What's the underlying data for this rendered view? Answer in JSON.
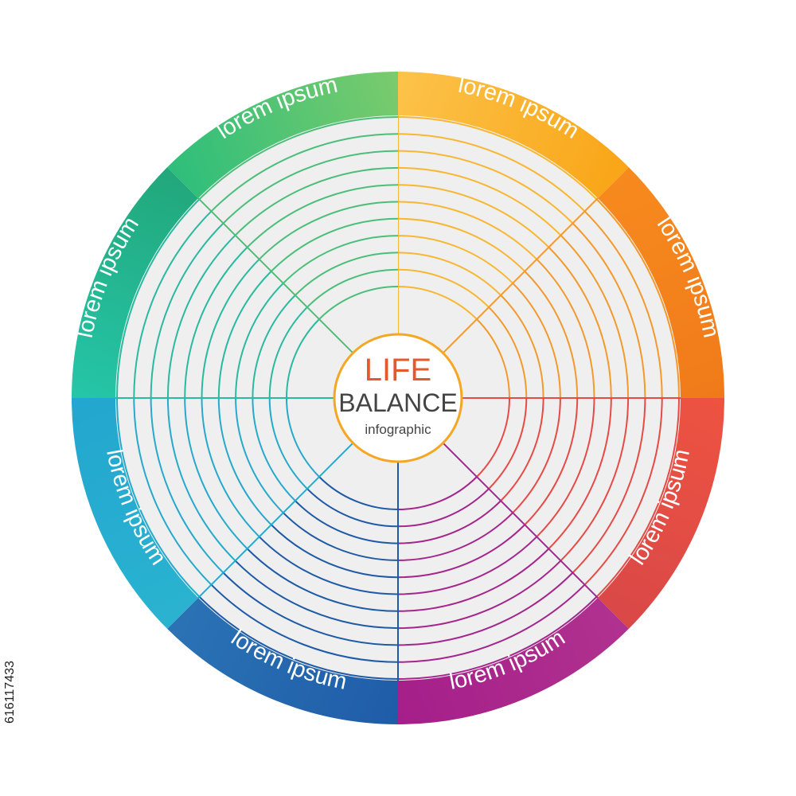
{
  "center": {
    "title": "LIFE",
    "subtitle": "BALANCE",
    "caption": "infographic",
    "title_color": "#E4582B",
    "ring_color": "#F5A623"
  },
  "rings_per_segment": 11,
  "segments": [
    {
      "label": "lorem ipsum",
      "color_start": "#FCC34B",
      "color_end": "#F9A516",
      "line_color": "#F7B733"
    },
    {
      "label": "lorem ipsum",
      "color_start": "#F78A1E",
      "color_end": "#F07A1A",
      "line_color": "#F29A2E"
    },
    {
      "label": "lorem ipsum",
      "color_start": "#EE5340",
      "color_end": "#D94848",
      "line_color": "#E64B46"
    },
    {
      "label": "lorem ipsum",
      "color_start": "#B0328F",
      "color_end": "#A51E8A",
      "line_color": "#A4268D"
    },
    {
      "label": "lorem ipsum",
      "color_start": "#1F5CA8",
      "color_end": "#2B73B5",
      "line_color": "#1E5AA6"
    },
    {
      "label": "lorem ipsum",
      "color_start": "#2AB3D0",
      "color_end": "#23A6CF",
      "line_color": "#27A9CC"
    },
    {
      "label": "lorem ipsum",
      "color_start": "#25C6A9",
      "color_end": "#22A77A",
      "line_color": "#2BB9A0"
    },
    {
      "label": "lorem ipsum",
      "color_start": "#2DBE7B",
      "color_end": "#7BCB6C",
      "line_color": "#4CBE7A"
    }
  ],
  "stock_id": "616117433"
}
